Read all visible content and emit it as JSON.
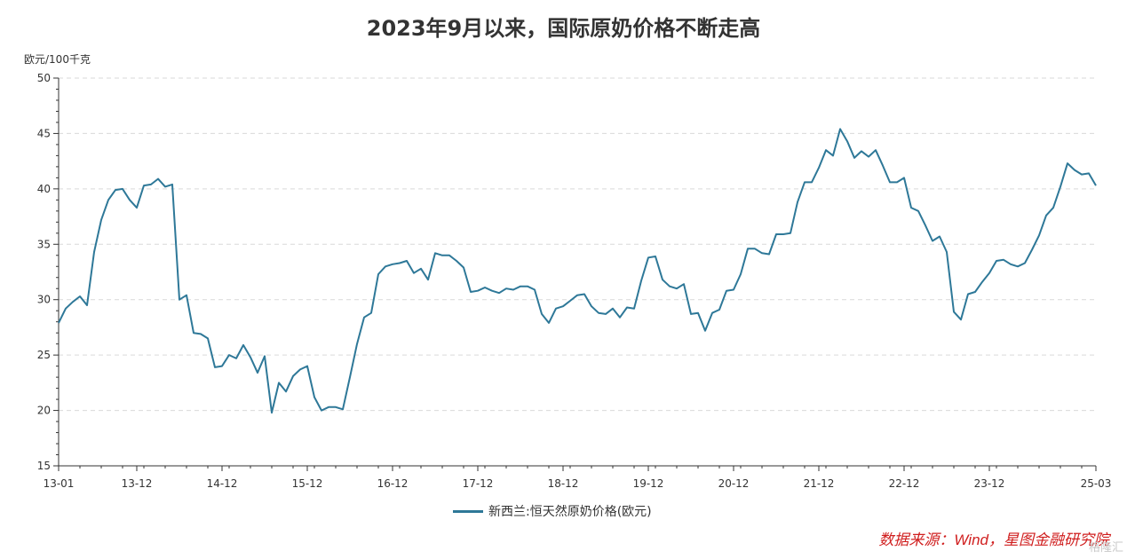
{
  "chart_data": {
    "type": "line",
    "title": "2023年9月以来，国际原奶价格不断走高",
    "ylabel": "欧元/100千克",
    "ylim": [
      15,
      50
    ],
    "yticks": [
      15,
      20,
      25,
      30,
      35,
      40,
      45,
      50
    ],
    "grid": "horizontal dashed",
    "legend_position": "bottom-center",
    "x_ticks": [
      "13-01",
      "13-12",
      "14-12",
      "15-12",
      "16-12",
      "17-12",
      "18-12",
      "19-12",
      "20-12",
      "21-12",
      "22-12",
      "23-12",
      "25-03"
    ],
    "series": [
      {
        "name": "新西兰:恒天然原奶价格(欧元)",
        "color": "#2e7898",
        "x": [
          "13-01",
          "13-02",
          "13-03",
          "13-04",
          "13-05",
          "13-06",
          "13-07",
          "13-08",
          "13-09",
          "13-10",
          "13-11",
          "13-12",
          "14-01",
          "14-02",
          "14-03",
          "14-04",
          "14-05",
          "14-06",
          "14-07",
          "14-08",
          "14-09",
          "14-10",
          "14-11",
          "14-12",
          "15-01",
          "15-02",
          "15-03",
          "15-04",
          "15-05",
          "15-06",
          "15-07",
          "15-08",
          "15-09",
          "15-10",
          "15-11",
          "15-12",
          "16-01",
          "16-02",
          "16-03",
          "16-04",
          "16-05",
          "16-06",
          "16-07",
          "16-08",
          "16-09",
          "16-10",
          "16-11",
          "16-12",
          "17-01",
          "17-02",
          "17-03",
          "17-04",
          "17-05",
          "17-06",
          "17-07",
          "17-08",
          "17-09",
          "17-10",
          "17-11",
          "17-12",
          "18-01",
          "18-02",
          "18-03",
          "18-04",
          "18-05",
          "18-06",
          "18-07",
          "18-08",
          "18-09",
          "18-10",
          "18-11",
          "18-12",
          "19-01",
          "19-02",
          "19-03",
          "19-04",
          "19-05",
          "19-06",
          "19-07",
          "19-08",
          "19-09",
          "19-10",
          "19-11",
          "19-12",
          "20-01",
          "20-02",
          "20-03",
          "20-04",
          "20-05",
          "20-06",
          "20-07",
          "20-08",
          "20-09",
          "20-10",
          "20-11",
          "20-12",
          "21-01",
          "21-02",
          "21-03",
          "21-04",
          "21-05",
          "21-06",
          "21-07",
          "21-08",
          "21-09",
          "21-10",
          "21-11",
          "21-12",
          "22-01",
          "22-02",
          "22-03",
          "22-04",
          "22-05",
          "22-06",
          "22-07",
          "22-08",
          "22-09",
          "22-10",
          "22-11",
          "22-12",
          "23-01",
          "23-02",
          "23-03",
          "23-04",
          "23-05",
          "23-06",
          "23-07",
          "23-08",
          "23-09",
          "23-10",
          "23-11",
          "23-12",
          "24-01",
          "24-02",
          "24-03",
          "24-04",
          "24-05",
          "24-06",
          "24-07",
          "24-08",
          "24-09",
          "24-10",
          "24-11",
          "24-12",
          "25-01",
          "25-02",
          "25-03"
        ],
        "values": [
          27.9,
          29.2,
          29.8,
          30.3,
          29.5,
          34.3,
          37.2,
          39.0,
          39.9,
          40.0,
          39.0,
          38.3,
          40.3,
          40.4,
          40.9,
          40.2,
          40.4,
          30.0,
          30.4,
          27.0,
          26.9,
          26.5,
          23.9,
          24.0,
          25.0,
          24.7,
          25.9,
          24.8,
          23.4,
          24.9,
          19.8,
          22.5,
          21.7,
          23.1,
          23.7,
          24.0,
          21.2,
          20.0,
          20.3,
          20.3,
          20.1,
          23.0,
          26.0,
          28.4,
          28.8,
          32.3,
          33.0,
          33.2,
          33.3,
          33.5,
          32.4,
          32.8,
          31.8,
          34.2,
          34.0,
          34.0,
          33.5,
          32.9,
          30.7,
          30.8,
          31.1,
          30.8,
          30.6,
          31.0,
          30.9,
          31.2,
          31.2,
          30.9,
          28.7,
          27.9,
          29.2,
          29.4,
          29.9,
          30.4,
          30.5,
          29.4,
          28.8,
          28.7,
          29.2,
          28.4,
          29.3,
          29.2,
          31.7,
          33.8,
          33.9,
          31.8,
          31.2,
          31.0,
          31.4,
          28.7,
          28.8,
          27.2,
          28.8,
          29.1,
          30.8,
          30.9,
          32.3,
          34.6,
          34.6,
          34.2,
          34.1,
          35.9,
          35.9,
          36.0,
          38.8,
          40.6,
          40.6,
          41.9,
          43.5,
          43.0,
          45.4,
          44.3,
          42.8,
          43.4,
          42.9,
          43.5,
          42.1,
          40.6,
          40.6,
          41.0,
          38.3,
          38.0,
          36.7,
          35.3,
          35.7,
          34.3,
          28.9,
          28.2,
          30.5,
          30.7,
          31.6,
          32.4,
          33.5,
          33.6,
          33.2,
          33.0,
          33.3,
          34.5,
          35.8,
          37.6,
          38.3,
          40.2,
          42.3,
          41.7,
          41.3,
          41.4,
          40.3
        ]
      }
    ]
  },
  "source_text": "数据来源：Wind，星图金融研究院",
  "source_color": "#d01f1f",
  "watermark_text": "格隆汇"
}
